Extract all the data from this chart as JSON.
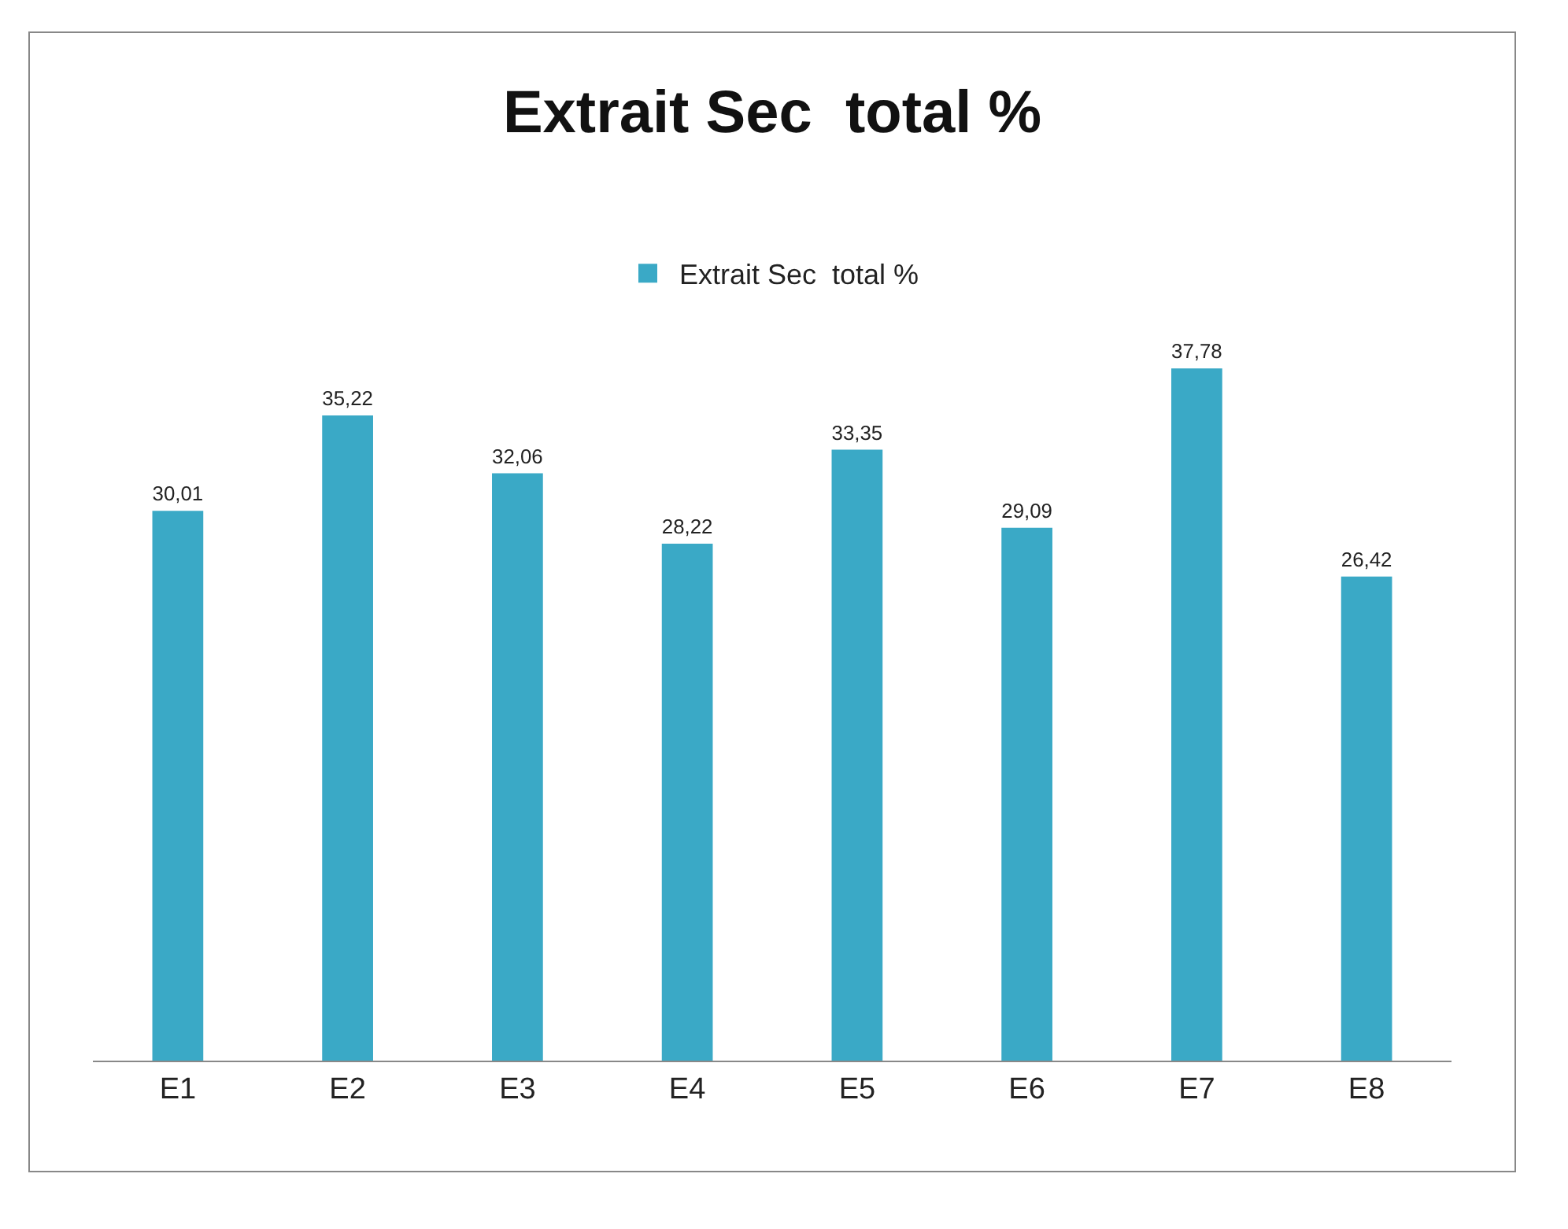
{
  "chart_data": {
    "type": "bar",
    "title": "Extrait Sec  total %",
    "categories": [
      "E1",
      "E2",
      "E3",
      "E4",
      "E5",
      "E6",
      "E7",
      "E8"
    ],
    "series": [
      {
        "name": "Extrait Sec  total %",
        "color": "#3aa9c6",
        "values": [
          30.01,
          35.22,
          32.06,
          28.22,
          33.35,
          29.09,
          37.78,
          26.42
        ],
        "value_labels": [
          "30,01",
          "35,22",
          "32,06",
          "28,22",
          "33,35",
          "29,09",
          "37,78",
          "26,42"
        ]
      }
    ],
    "legend": "top",
    "grid": false
  }
}
